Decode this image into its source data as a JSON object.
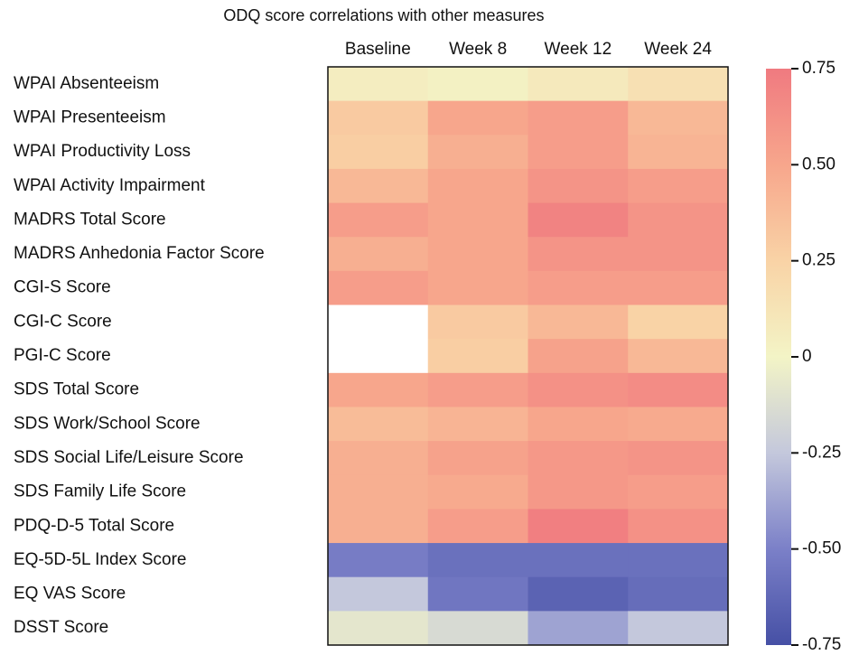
{
  "chart_data": {
    "type": "heatmap",
    "title": "ODQ score correlations with other measures",
    "columns": [
      "Baseline",
      "Week 8",
      "Week 12",
      "Week 24"
    ],
    "rows": [
      "WPAI Absenteeism",
      "WPAI Presenteeism",
      "WPAI Productivity Loss",
      "WPAI Activity Impairment",
      "MADRS Total Score",
      "MADRS Anhedonia Factor Score",
      "CGI-S Score",
      "CGI-C Score",
      "PGI-C Score",
      "SDS Total Score",
      "SDS Work/School Score",
      "SDS Social Life/Leisure Score",
      "SDS Family Life Score",
      "PDQ-D-5 Total Score",
      "EQ-5D-5L Index Score",
      "EQ VAS Score",
      "DSST Score"
    ],
    "values": [
      [
        0.05,
        0.02,
        0.08,
        0.15
      ],
      [
        0.3,
        0.5,
        0.55,
        0.4
      ],
      [
        0.28,
        0.45,
        0.55,
        0.42
      ],
      [
        0.4,
        0.5,
        0.6,
        0.55
      ],
      [
        0.55,
        0.5,
        0.7,
        0.6
      ],
      [
        0.45,
        0.5,
        0.6,
        0.6
      ],
      [
        0.55,
        0.5,
        0.55,
        0.55
      ],
      [
        null,
        0.3,
        0.4,
        0.25
      ],
      [
        null,
        0.28,
        0.52,
        0.4
      ],
      [
        0.5,
        0.55,
        0.62,
        0.65
      ],
      [
        0.38,
        0.42,
        0.5,
        0.48
      ],
      [
        0.45,
        0.52,
        0.58,
        0.6
      ],
      [
        0.45,
        0.48,
        0.58,
        0.55
      ],
      [
        0.45,
        0.55,
        0.72,
        0.62
      ],
      [
        -0.52,
        -0.58,
        -0.58,
        -0.58
      ],
      [
        -0.25,
        -0.55,
        -0.65,
        -0.6
      ],
      [
        -0.08,
        -0.15,
        -0.38,
        -0.25
      ]
    ],
    "clim": [
      -0.75,
      0.75
    ],
    "cticks": [
      0.75,
      {
        "value": 0.5,
        "label": "0.50"
      },
      0.25,
      0,
      -0.25,
      {
        "value": -0.5,
        "label": "-0.50"
      },
      -0.75
    ],
    "colormap": [
      "#4650a5",
      "#7b80c8",
      "#c4c8dc",
      "#f3f4c6",
      "#f9d3a6",
      "#f7a68c",
      "#f07a80"
    ],
    "missing_color": "#ffffff"
  }
}
